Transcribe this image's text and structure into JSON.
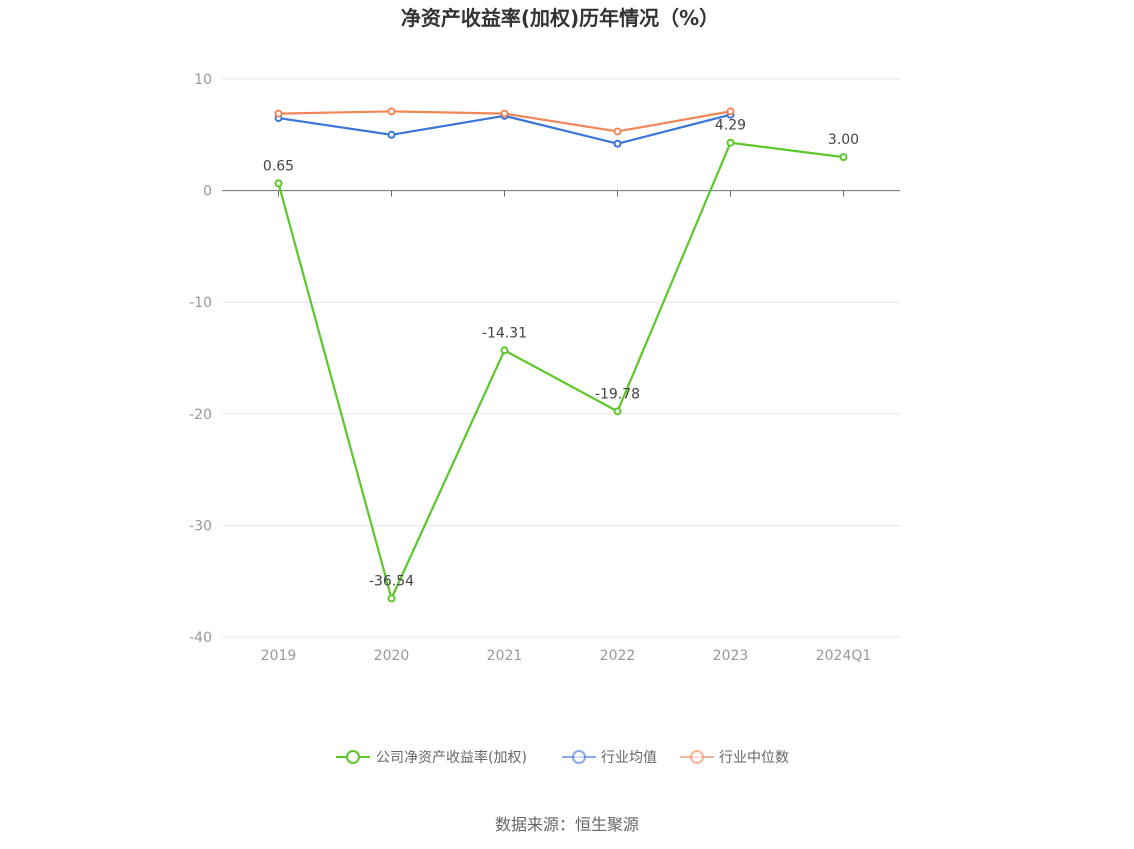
{
  "chart_data": {
    "type": "line",
    "title": "净资产收益率(加权)历年情况（%）",
    "categories": [
      "2019",
      "2020",
      "2021",
      "2022",
      "2023",
      "2024Q1"
    ],
    "ylim": [
      -40,
      10
    ],
    "yticks": [
      10,
      0,
      -10,
      -20,
      -30,
      -40
    ],
    "grid": true,
    "legend_position": "bottom",
    "series": [
      {
        "name": "公司净资产收益率(加权)",
        "color": "#5cc72b",
        "values": [
          0.65,
          -36.54,
          -14.31,
          -19.78,
          4.29,
          3.0
        ],
        "labels": [
          "0.65",
          "-36.54",
          "-14.31",
          "-19.78",
          "4.29",
          "3.00"
        ]
      },
      {
        "name": "行业均值",
        "color": "#3a75d9",
        "values": [
          6.5,
          5.0,
          6.7,
          4.2,
          6.8,
          null
        ]
      },
      {
        "name": "行业中位数",
        "color": "#f0875a",
        "values": [
          6.9,
          7.1,
          6.9,
          5.3,
          7.1,
          null
        ]
      }
    ],
    "source": "数据来源：恒生聚源"
  }
}
